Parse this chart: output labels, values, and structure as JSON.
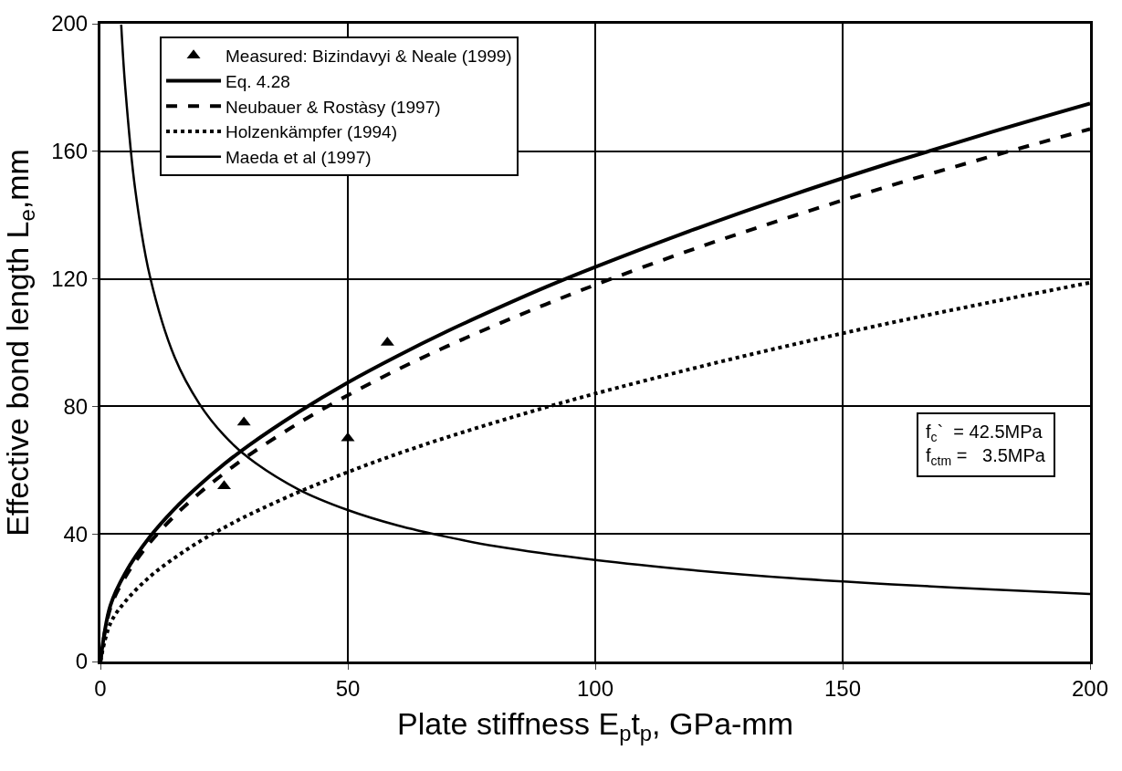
{
  "chart_data": {
    "type": "line",
    "xlabel": "Plate stiffness E$_{p}$t$_{p}$, GPa-mm",
    "ylabel": "Effective bond length L$_{e}$,mm",
    "xlim": [
      0,
      200
    ],
    "xticks": [
      0,
      50,
      100,
      150,
      200
    ],
    "ylim": [
      0,
      200
    ],
    "yticks": [
      0,
      40,
      80,
      120,
      160,
      200
    ],
    "grid": true,
    "legend": "top left",
    "annotations": [
      "f$_{c}$`  = 42.5MPa",
      "f$_{ctm}$ =   3.5MPa"
    ],
    "series": [
      {
        "name": "Measured: Bizindavyi & Neale (1999)",
        "type": "scatter",
        "marker": "triangle",
        "color": "#000000",
        "x": [
          25,
          29,
          50,
          58
        ],
        "values": [
          55,
          75,
          70,
          100
        ]
      },
      {
        "name": "Eq. 4.28",
        "color": "#000000",
        "line_style": "solid",
        "x": [
          0,
          2,
          5,
          10,
          15,
          20,
          25,
          30,
          40,
          50,
          60,
          70,
          80,
          90,
          100,
          120,
          140,
          160,
          180,
          200
        ],
        "values": [
          0,
          17.5,
          27.7,
          39.1,
          47.9,
          55.3,
          61.9,
          67.8,
          78.2,
          87.5,
          95.8,
          103.5,
          110.6,
          117.4,
          123.7,
          135.5,
          146.4,
          156.5,
          166.0,
          175.0
        ]
      },
      {
        "name": "Neubauer & Rostàsy (1997)",
        "color": "#000000",
        "line_style": "dashed",
        "x": [
          0,
          2,
          5,
          10,
          15,
          20,
          25,
          30,
          40,
          50,
          60,
          70,
          80,
          90,
          100,
          120,
          140,
          160,
          180,
          200
        ],
        "values": [
          0,
          16.7,
          26.4,
          37.3,
          45.7,
          52.8,
          59.0,
          64.7,
          74.7,
          83.5,
          91.5,
          98.8,
          105.6,
          112.0,
          118.1,
          129.4,
          139.7,
          149.4,
          158.4,
          167.0
        ]
      },
      {
        "name": "Holzenkämpfer (1994)",
        "color": "#000000",
        "line_style": "dotted",
        "x": [
          0,
          2,
          5,
          10,
          15,
          20,
          25,
          30,
          40,
          50,
          60,
          70,
          80,
          90,
          100,
          120,
          140,
          160,
          180,
          200
        ],
        "values": [
          0,
          11.9,
          18.8,
          26.6,
          32.5,
          37.6,
          42.0,
          46.0,
          53.1,
          59.4,
          65.1,
          70.3,
          75.1,
          79.7,
          84.0,
          92.0,
          99.4,
          106.3,
          112.7,
          118.8
        ]
      },
      {
        "name": "Maeda et al (1997)",
        "color": "#000000",
        "line_style": "solid",
        "x": [
          4.2,
          5,
          7,
          10,
          15,
          20,
          25,
          30,
          40,
          50,
          60,
          70,
          80,
          100,
          120,
          140,
          160,
          180,
          200
        ],
        "values": [
          199.7,
          180.4,
          148.4,
          120.8,
          95.4,
          80.8,
          70.9,
          63.8,
          54.0,
          47.5,
          42.7,
          39.1,
          36.1,
          31.8,
          28.6,
          26.1,
          24.2,
          22.6,
          21.2
        ]
      }
    ]
  }
}
